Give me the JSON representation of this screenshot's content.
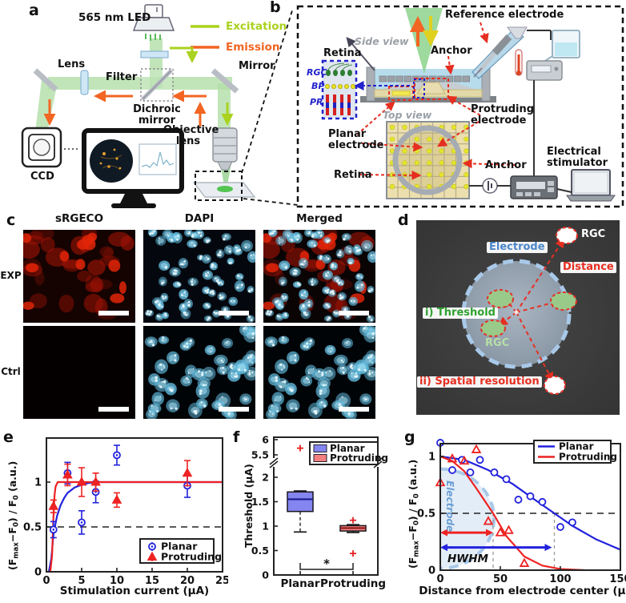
{
  "panels": {
    "a": {
      "letter": "a",
      "led": "565 nm LED",
      "legend": {
        "excitation": "Excitation",
        "emission": "Emission"
      },
      "lens": "Lens",
      "filter": "Filter",
      "mirror": "Mirror",
      "dichroic": "Dichroic mirror",
      "objective": "Objective lens",
      "ccd": "CCD",
      "colors": {
        "excitation": "#aad21e",
        "emission": "#f26522"
      }
    },
    "b": {
      "letter": "b",
      "reference_electrode": "Reference electrode",
      "side_view": "Side view",
      "top_view": "Top view",
      "anchor_side": "Anchor",
      "anchor_top": "Anchor",
      "retina_inset": "Retina",
      "retina_top": "Retina",
      "layers": {
        "rgc": "RGC",
        "bp": "BP",
        "pr": "PR"
      },
      "planar_electrode": "Planar electrode",
      "protruding_electrode": "Protruding electrode",
      "electrical_stimulator": "Electrical stimulator"
    },
    "c": {
      "letter": "c",
      "columns": [
        "sRGECO",
        "DAPI",
        "Merged"
      ],
      "rows": [
        "EXP",
        "Ctrl"
      ]
    },
    "d": {
      "letter": "d",
      "electrode": "Electrode",
      "rgc_outer": "RGC",
      "rgc_inner": "RGC",
      "distance": "Distance",
      "threshold": "i) Threshold",
      "spatial_resolution": "ii) Spatial resolution"
    },
    "e": {
      "letter": "e"
    },
    "f": {
      "letter": "f"
    },
    "g": {
      "letter": "g"
    }
  },
  "chart_data": [
    {
      "id": "e",
      "type": "scatter",
      "xlabel": "Stimulation current (µA)",
      "ylabel_rich": [
        {
          "t": "(F"
        },
        {
          "t": "max",
          "sub": true
        },
        {
          "t": "−F"
        },
        {
          "t": "0",
          "sub": true
        },
        {
          "t": ") / F"
        },
        {
          "t": "0",
          "sub": true
        },
        {
          "t": " (a.u.)"
        }
      ],
      "xlim": [
        0,
        25
      ],
      "ylim": [
        0,
        1.49
      ],
      "xticks": [
        0,
        5,
        10,
        15,
        20,
        25
      ],
      "yticks": [
        0,
        0.5,
        1
      ],
      "threshold_line": 0.5,
      "legend_position": "bottom-right",
      "series": [
        {
          "name": "Planar",
          "color": "#2222dd",
          "marker": "circle",
          "x": [
            1,
            3,
            5,
            7,
            10,
            20
          ],
          "y": [
            0.47,
            1.1,
            0.55,
            0.89,
            1.3,
            0.96
          ],
          "yerr": [
            0.09,
            0.12,
            0.13,
            0.12,
            0.11,
            0.13
          ],
          "fit": {
            "x": [
              0.35,
              0.7,
              1,
              1.5,
              2,
              2.5,
              3,
              4,
              5,
              6,
              7,
              9,
              25
            ],
            "y": [
              0,
              0.15,
              0.42,
              0.62,
              0.74,
              0.82,
              0.88,
              0.94,
              0.97,
              0.99,
              1,
              1,
              1
            ]
          }
        },
        {
          "name": "Protruding",
          "color": "#ee2222",
          "marker": "triangle",
          "x": [
            1,
            3,
            5,
            7,
            10,
            20
          ],
          "y": [
            0.73,
            1.08,
            1.0,
            1.0,
            0.8,
            1.1
          ],
          "yerr": [
            0.07,
            0.12,
            0.16,
            0.1,
            0.08,
            0.14
          ],
          "fit": {
            "x": [
              0.55,
              0.8,
              1,
              1.15,
              1.3,
              1.6,
              2,
              25
            ],
            "y": [
              0,
              0.18,
              0.62,
              0.85,
              0.95,
              1,
              1,
              1
            ]
          }
        }
      ]
    },
    {
      "id": "f",
      "type": "box",
      "ylabel": "Threshold (µA)",
      "categories": [
        "Planar",
        "Protruding"
      ],
      "axis_break": {
        "lower_range": [
          0,
          2.2
        ],
        "upper_range": [
          5.45,
          6.05
        ],
        "lower_ticks": [
          0,
          0.5,
          1,
          1.5,
          2
        ],
        "upper_ticks": [
          5.5,
          6
        ]
      },
      "boxes": [
        {
          "name": "Planar",
          "color": "#8585f0",
          "q1": 1.3,
          "median": 1.55,
          "q3": 1.7,
          "whisker_low": 0.88,
          "whisker_high": 1.72,
          "outliers": [
            5.72
          ]
        },
        {
          "name": "Protruding",
          "color": "#f28080",
          "q1": 0.9,
          "median": 0.96,
          "q3": 1.01,
          "whisker_low": 0.87,
          "whisker_high": 1.03,
          "outliers": [
            1.12,
            0.44
          ]
        }
      ],
      "significance": "*",
      "legend_position": "top-right"
    },
    {
      "id": "g",
      "type": "scatter-line",
      "xlabel": "Distance from electrode center (µm)",
      "ylabel_rich": [
        {
          "t": "(F"
        },
        {
          "t": "max",
          "sub": true
        },
        {
          "t": "−F"
        },
        {
          "t": "0",
          "sub": true
        },
        {
          "t": ") / F"
        },
        {
          "t": "0",
          "sub": true
        },
        {
          "t": " (a.u.)"
        }
      ],
      "xlim": [
        0,
        150
      ],
      "ylim": [
        0,
        1.11
      ],
      "xticks": [
        0,
        50,
        100,
        150
      ],
      "yticks": [
        0,
        0.5,
        1
      ],
      "threshold_line": 0.5,
      "hwhm_label": "HWHM",
      "electrode_region": {
        "label": "Electrode",
        "radius_um": 45
      },
      "legend_position": "top-right",
      "series": [
        {
          "name": "Planar",
          "color": "#2222dd",
          "marker": "circle",
          "hwhm_um": 95,
          "x": [
            0,
            10,
            18,
            25,
            33,
            45,
            55,
            65,
            75,
            85,
            100,
            110
          ],
          "y": [
            1.12,
            0.88,
            0.97,
            0.86,
            0.97,
            0.86,
            0.8,
            0.62,
            0.65,
            0.6,
            0.38,
            0.42
          ],
          "fit": {
            "x": [
              0,
              20,
              40,
              60,
              80,
              95,
              110,
              130,
              150
            ],
            "y": [
              1.0,
              0.97,
              0.88,
              0.76,
              0.61,
              0.5,
              0.39,
              0.27,
              0.18
            ]
          }
        },
        {
          "name": "Protruding",
          "color": "#ee2222",
          "marker": "triangle",
          "hwhm_um": 44,
          "x": [
            0,
            10,
            20,
            30,
            40,
            50,
            57,
            70
          ],
          "y": [
            0.77,
            0.98,
            0.96,
            1.06,
            0.43,
            0.33,
            0.35,
            0.06
          ],
          "fit": {
            "x": [
              0,
              10,
              20,
              30,
              44,
              55,
              70,
              85,
              100,
              120
            ],
            "y": [
              1.0,
              0.96,
              0.87,
              0.72,
              0.5,
              0.3,
              0.12,
              0.04,
              0.01,
              0
            ]
          }
        }
      ]
    }
  ]
}
